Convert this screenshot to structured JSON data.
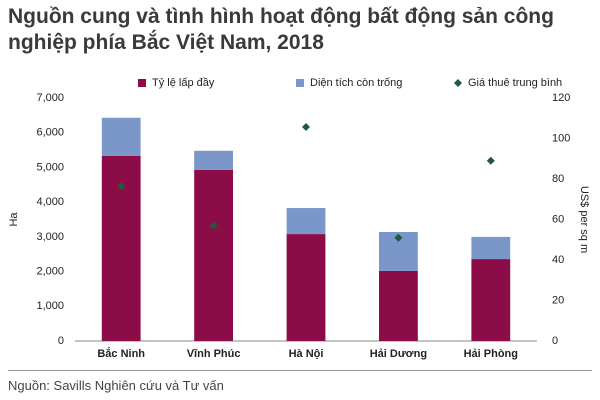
{
  "chart_data": {
    "type": "bar",
    "stacked": true,
    "title": "Nguồn cung và tình hình hoạt động bất động sản công nghiệp phía Bắc Việt Nam, 2018",
    "ylabel": "Ha",
    "y2label": "US$ per sq m",
    "source": "Nguồn: Savills Nghiên cứu và Tư vấn",
    "categories": [
      "Bắc Ninh",
      "Vĩnh Phúc",
      "Hà Nội",
      "Hải Dương",
      "Hải Phòng"
    ],
    "series": [
      {
        "name": "Tỷ lệ lấp đầy",
        "color": "#8b0c47",
        "values": [
          5330,
          4930,
          3080,
          2020,
          2360
        ]
      },
      {
        "name": "Diện tích còn trống",
        "color": "#7b96c9",
        "values": [
          1100,
          550,
          750,
          1120,
          640
        ]
      },
      {
        "name": "Giá thuê trung bình",
        "color": "#1e5b3c",
        "type": "scatter",
        "axis": "y2",
        "values": [
          76.5,
          57,
          105.7,
          51,
          89
        ]
      }
    ],
    "ylim": [
      0,
      7000
    ],
    "yticks": [
      0,
      {
        "value": 1000,
        "label": "1,000"
      },
      {
        "value": 2000,
        "label": "2,000"
      },
      {
        "value": 3000,
        "label": "3,000"
      },
      {
        "value": 4000,
        "label": "4,000"
      },
      {
        "value": 5000,
        "label": "5,000"
      },
      {
        "value": 6000,
        "label": "6,000"
      },
      {
        "value": 7000,
        "label": "7,000"
      }
    ],
    "y2lim": [
      0,
      120
    ],
    "y2ticks": [
      0,
      20,
      40,
      60,
      80,
      100,
      120
    ],
    "grid": false
  }
}
